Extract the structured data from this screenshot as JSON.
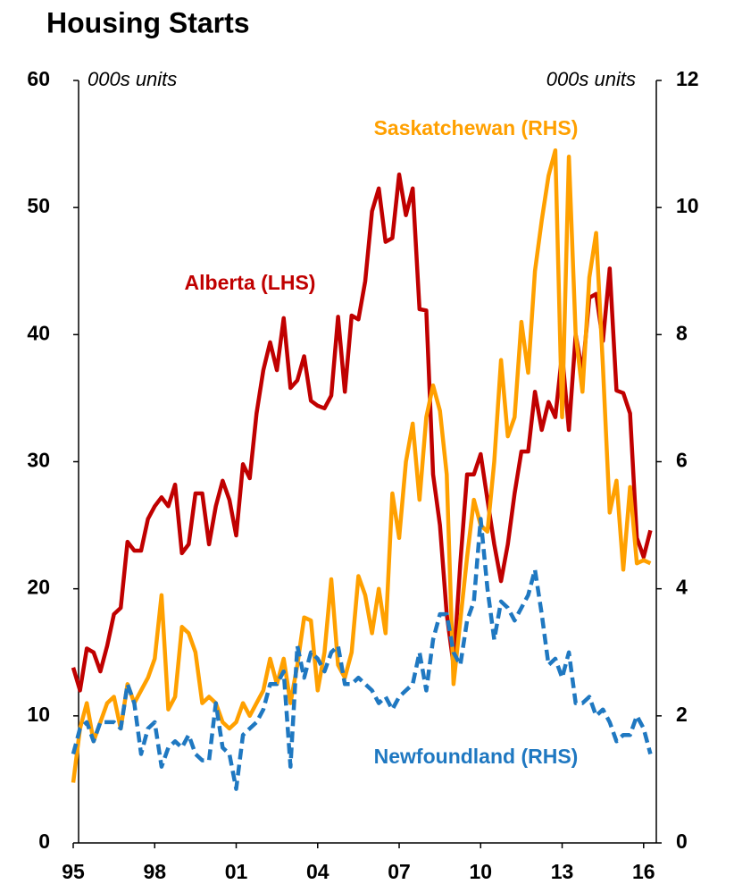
{
  "chart_data": {
    "type": "line",
    "title": "Housing Starts",
    "y_label": "000s units",
    "y2_label": "000s units",
    "x": [
      1995,
      1995.25,
      1995.5,
      1995.75,
      1996,
      1996.25,
      1996.5,
      1996.75,
      1997,
      1997.25,
      1997.5,
      1997.75,
      1998,
      1998.25,
      1998.5,
      1998.75,
      1999,
      1999.25,
      1999.5,
      1999.75,
      2000,
      2000.25,
      2000.5,
      2000.75,
      2001,
      2001.25,
      2001.5,
      2001.75,
      2002,
      2002.25,
      2002.5,
      2002.75,
      2003,
      2003.25,
      2003.5,
      2003.75,
      2004,
      2004.25,
      2004.5,
      2004.75,
      2005,
      2005.25,
      2005.5,
      2005.75,
      2006,
      2006.25,
      2006.5,
      2006.75,
      2007,
      2007.25,
      2007.5,
      2007.75,
      2008,
      2008.25,
      2008.5,
      2008.75,
      2009,
      2009.25,
      2009.5,
      2009.75,
      2010,
      2010.25,
      2010.5,
      2010.75,
      2011,
      2011.25,
      2011.5,
      2011.75,
      2012,
      2012.25,
      2012.5,
      2012.75,
      2013,
      2013.25,
      2013.5,
      2013.75,
      2014,
      2014.25,
      2014.5,
      2014.75,
      2015,
      2015.25,
      2015.5,
      2015.75,
      2016,
      2016.25
    ],
    "xlim": [
      1995,
      2016.5
    ],
    "xticks": [
      {
        "value": 1995,
        "label": "95"
      },
      {
        "value": 1998,
        "label": "98"
      },
      {
        "value": 2001,
        "label": "01"
      },
      {
        "value": 2004,
        "label": "04"
      },
      {
        "value": 2007,
        "label": "07"
      },
      {
        "value": 2010,
        "label": "10"
      },
      {
        "value": 2013,
        "label": "13"
      },
      {
        "value": 2016,
        "label": "16"
      }
    ],
    "ylim": [
      0,
      60
    ],
    "yticks": [
      0,
      10,
      20,
      30,
      40,
      50,
      60
    ],
    "y2lim": [
      0,
      12
    ],
    "y2ticks": [
      0,
      2,
      4,
      6,
      8,
      10,
      12
    ],
    "series": [
      {
        "name": "Alberta (LHS)",
        "color": "#c00000",
        "dash": false,
        "values": [
          13.8,
          12,
          15.3,
          15,
          13.5,
          15.5,
          18,
          18.5,
          23.7,
          23,
          23,
          25.5,
          26.5,
          27.2,
          26.5,
          28.2,
          22.8,
          23.5,
          27.5,
          27.5,
          23.5,
          26.5,
          28.5,
          27,
          24.2,
          29.8,
          28.7,
          33.8,
          37.2,
          39.4,
          37.2,
          41.3,
          35.8,
          36.4,
          38.3,
          34.8,
          34.4,
          34.2,
          35.2,
          41.4,
          35.5,
          41.5,
          41.2,
          44.2,
          49.7,
          51.5,
          47.3,
          47.6,
          52.6,
          49.4,
          51.5,
          42,
          41.9,
          29,
          25,
          18,
          14,
          22,
          29,
          29,
          30.6,
          27,
          23.5,
          20.6,
          23.5,
          27.5,
          30.8,
          30.8,
          35.5,
          32.5,
          34.7,
          33.5,
          38.5,
          32.5,
          40,
          37,
          42.9,
          43.2,
          39.5,
          45.2,
          35.6,
          35.4,
          33.8,
          24,
          22.5,
          24.6
        ]
      },
      {
        "name": "Saskatchewan (RHS)",
        "color": "#ffa000",
        "dash": false,
        "axis": "y2",
        "values": [
          0.95,
          1.8,
          2.2,
          1.6,
          1.9,
          2.2,
          2.3,
          1.8,
          2.5,
          2.2,
          2.4,
          2.6,
          2.9,
          3.9,
          2.1,
          2.3,
          3.4,
          3.3,
          3.0,
          2.2,
          2.3,
          2.2,
          1.9,
          1.8,
          1.9,
          2.2,
          2.0,
          2.2,
          2.4,
          2.9,
          2.5,
          2.9,
          2.2,
          2.8,
          3.55,
          3.5,
          2.4,
          3.0,
          4.15,
          2.8,
          2.6,
          3.0,
          4.2,
          3.9,
          3.3,
          4.0,
          3.3,
          5.5,
          4.8,
          6.0,
          6.6,
          5.4,
          6.7,
          7.2,
          6.8,
          5.8,
          2.5,
          3.5,
          4.5,
          5.4,
          5.0,
          4.9,
          6.0,
          7.6,
          6.4,
          6.7,
          8.2,
          7.4,
          9.0,
          9.8,
          10.5,
          10.9,
          6.7,
          10.8,
          8.0,
          7.1,
          8.9,
          9.6,
          7.5,
          5.2,
          5.7,
          4.3,
          5.6,
          4.4,
          4.45,
          4.4
        ]
      },
      {
        "name": "Newfoundland (RHS)",
        "color": "#1f78c1",
        "dash": true,
        "axis": "y2",
        "values": [
          1.4,
          1.8,
          1.9,
          1.6,
          1.9,
          1.9,
          1.9,
          1.8,
          2.5,
          2.2,
          1.4,
          1.8,
          1.9,
          1.2,
          1.5,
          1.6,
          1.5,
          1.7,
          1.4,
          1.3,
          1.3,
          2.2,
          1.5,
          1.4,
          0.85,
          1.7,
          1.8,
          1.9,
          2.1,
          2.5,
          2.5,
          2.7,
          1.2,
          3.1,
          2.6,
          3.0,
          2.9,
          2.7,
          3.0,
          3.1,
          2.5,
          2.5,
          2.6,
          2.5,
          2.4,
          2.2,
          2.3,
          2.1,
          2.3,
          2.4,
          2.5,
          3.0,
          2.4,
          3.2,
          3.6,
          3.6,
          3.0,
          2.8,
          3.5,
          3.8,
          5.1,
          4.0,
          3.2,
          3.8,
          3.7,
          3.5,
          3.7,
          3.9,
          4.3,
          3.6,
          2.8,
          2.9,
          2.6,
          3.0,
          2.2,
          2.2,
          2.3,
          2.0,
          2.1,
          1.9,
          1.6,
          1.7,
          1.7,
          2.0,
          1.8,
          1.4
        ]
      }
    ]
  }
}
